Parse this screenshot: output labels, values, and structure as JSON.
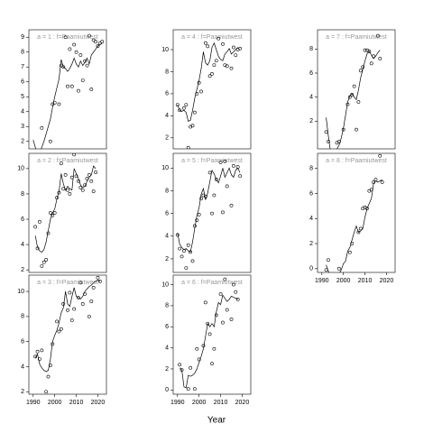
{
  "xlabel": "Year",
  "chart_data": [
    {
      "type": "scatter",
      "title": "a = 1 : f=Paamiutwest",
      "xlim": [
        1988,
        2024
      ],
      "ylim": [
        1.5,
        9.5
      ],
      "yticks": [
        2,
        3,
        4,
        5,
        6,
        7,
        8,
        9
      ],
      "x": [
        1990,
        1991,
        1992,
        1993,
        1994,
        1995,
        1996,
        1997,
        1998,
        1999,
        2000,
        2001,
        2002,
        2003,
        2004,
        2005,
        2006,
        2007,
        2008,
        2009,
        2010,
        2011,
        2012,
        2013,
        2014,
        2015,
        2016,
        2017,
        2018,
        2019,
        2020,
        2021,
        2022
      ],
      "values": [
        null,
        null,
        null,
        null,
        2.9,
        null,
        null,
        null,
        2.0,
        4.5,
        4.6,
        null,
        4.5,
        7.1,
        7.0,
        9.0,
        5.7,
        8.2,
        5.7,
        8.5,
        8.0,
        5.4,
        7.8,
        6.1,
        7.4,
        7.1,
        9.1,
        5.5,
        8.8,
        8.7,
        8.4,
        8.6,
        8.7
      ],
      "fit": [
        2.1,
        1.6,
        1.2,
        1.3,
        1.6,
        2.0,
        2.5,
        3.0,
        3.5,
        4.3,
        5.0,
        5.6,
        6.2,
        7.5,
        7.0,
        6.9,
        6.7,
        6.9,
        7.2,
        7.6,
        7.2,
        7.0,
        7.4,
        7.1,
        7.3,
        7.6,
        7.2,
        7.8,
        8.0,
        8.2,
        8.4,
        8.5,
        8.6
      ]
    },
    {
      "type": "scatter",
      "title": "a = 2 : f=Paamiutwest",
      "xlim": [
        1988,
        2024
      ],
      "ylim": [
        1.8,
        11.2
      ],
      "yticks": [
        2,
        4,
        6,
        8,
        10
      ],
      "x": [
        1990,
        1991,
        1992,
        1993,
        1994,
        1995,
        1996,
        1997,
        1998,
        1999,
        2000,
        2001,
        2002,
        2003,
        2004,
        2005,
        2006,
        2007,
        2008,
        2009,
        2010,
        2011,
        2012,
        2013,
        2014,
        2015,
        2016,
        2017,
        2018,
        2019,
        2020,
        2021,
        2022
      ],
      "values": [
        null,
        5.4,
        3.7,
        5.8,
        2.3,
        2.6,
        2.8,
        4.9,
        6.5,
        6.3,
        6.5,
        7.7,
        8.1,
        10.4,
        8.4,
        9.5,
        8.3,
        8.0,
        9.3,
        11.1,
        9.4,
        9.0,
        8.5,
        8.3,
        8.7,
        9.2,
        9.5,
        9.0,
        8.2,
        9.7,
        null,
        null,
        null
      ],
      "fit": [
        null,
        4.7,
        3.8,
        3.5,
        3.4,
        3.6,
        4.2,
        5.1,
        6.0,
        6.5,
        6.8,
        7.6,
        8.2,
        9.6,
        8.8,
        8.3,
        8.6,
        8.4,
        8.3,
        10.0,
        9.6,
        9.2,
        8.7,
        8.5,
        8.6,
        9.0,
        9.3,
        9.5,
        10.2,
        10.0,
        null,
        null,
        null
      ]
    },
    {
      "type": "scatter",
      "title": "a = 3 : f=Paamiutwest",
      "xlim": [
        1988,
        2024
      ],
      "ylim": [
        1.8,
        11.3
      ],
      "yticks": [
        2,
        4,
        6,
        8,
        10
      ],
      "xticks": [
        1990,
        2000,
        2010,
        2020
      ],
      "x": [
        1990,
        1991,
        1992,
        1993,
        1994,
        1995,
        1996,
        1997,
        1998,
        1999,
        2000,
        2001,
        2002,
        2003,
        2004,
        2005,
        2006,
        2007,
        2008,
        2009,
        2010,
        2011,
        2012,
        2013,
        2014,
        2015,
        2016,
        2017,
        2018,
        2019,
        2020,
        2021,
        2022
      ],
      "values": [
        null,
        4.8,
        5.2,
        4.6,
        5.3,
        null,
        2.0,
        3.2,
        4.1,
        5.8,
        null,
        7.6,
        6.8,
        7.0,
        9.0,
        null,
        8.5,
        9.9,
        7.7,
        8.6,
        null,
        9.5,
        10.7,
        9.0,
        9.8,
        null,
        8.0,
        9.2,
        10.3,
        null,
        11.1,
        10.8,
        null
      ],
      "fit": [
        null,
        4.7,
        5.0,
        4.2,
        3.9,
        3.7,
        3.6,
        3.7,
        4.6,
        6.0,
        6.5,
        6.9,
        7.5,
        8.3,
        8.7,
        10.0,
        9.0,
        8.8,
        9.6,
        10.3,
        9.6,
        9.5,
        9.4,
        9.6,
        10.0,
        10.2,
        10.4,
        10.5,
        10.7,
        10.8,
        10.9,
        10.8,
        null
      ]
    },
    {
      "type": "scatter",
      "title": "a = 4 : f=Paamiutwest",
      "xlim": [
        1988,
        2024
      ],
      "ylim": [
        1,
        11.8
      ],
      "yticks": [
        2,
        4,
        6,
        8,
        10
      ],
      "x": [
        1990,
        1991,
        1992,
        1993,
        1994,
        1995,
        1996,
        1997,
        1998,
        1999,
        2000,
        2001,
        2002,
        2003,
        2004,
        2005,
        2006,
        2007,
        2008,
        2009,
        2010,
        2011,
        2012,
        2013,
        2014,
        2015,
        2016,
        2017,
        2018,
        2019,
        2020,
        2021,
        2022
      ],
      "values": [
        5.0,
        4.5,
        null,
        4.7,
        5.0,
        1.1,
        3.0,
        3.1,
        4.3,
        6.0,
        7.0,
        6.2,
        null,
        10.6,
        10.3,
        7.6,
        7.8,
        8.6,
        9.0,
        11.0,
        null,
        10.5,
        8.6,
        8.5,
        null,
        8.3,
        10.2,
        9.5,
        10.0,
        10.1,
        null,
        null,
        null
      ],
      "fit": [
        5.0,
        4.5,
        4.4,
        4.5,
        4.3,
        3.5,
        3.6,
        4.5,
        5.6,
        6.4,
        7.2,
        8.3,
        9.8,
        8.8,
        8.6,
        9.0,
        10.2,
        10.6,
        10.0,
        9.4,
        9.1,
        9.0,
        9.6,
        9.8,
        10.1,
        9.6,
        9.8,
        10.0,
        10.2,
        null,
        null,
        null,
        null
      ]
    },
    {
      "type": "scatter",
      "title": "a = 5 : f=Paamiutwest",
      "xlim": [
        1988,
        2024
      ],
      "ylim": [
        0.8,
        11.3
      ],
      "yticks": [
        2,
        4,
        6,
        8,
        10
      ],
      "x": [
        1990,
        1991,
        1992,
        1993,
        1994,
        1995,
        1996,
        1997,
        1998,
        1999,
        2000,
        2001,
        2002,
        2003,
        2004,
        2005,
        2006,
        2007,
        2008,
        2009,
        2010,
        2011,
        2012,
        2013,
        2014,
        2015,
        2016,
        2017,
        2018,
        2019,
        2020,
        2021,
        2022
      ],
      "values": [
        4.1,
        2.9,
        2.2,
        2.7,
        1.2,
        3.2,
        2.6,
        1.8,
        4.9,
        5.4,
        5.9,
        7.3,
        7.6,
        7.5,
        null,
        9.6,
        6.0,
        7.6,
        9.0,
        null,
        10.5,
        6.1,
        10.6,
        8.4,
        null,
        6.7,
        10.2,
        null,
        10.1,
        9.3,
        null,
        null,
        null
      ],
      "fit": [
        4.3,
        3.3,
        3.0,
        2.8,
        2.9,
        2.7,
        2.6,
        3.5,
        4.7,
        5.8,
        6.5,
        7.7,
        8.2,
        7.2,
        7.8,
        8.8,
        9.8,
        9.5,
        9.0,
        8.7,
        9.3,
        10.0,
        9.2,
        9.6,
        10.0,
        9.4,
        9.2,
        9.8,
        10.0,
        9.6,
        null,
        null,
        null
      ]
    },
    {
      "type": "scatter",
      "title": "a = 6 : f=Paamiutwest",
      "xlim": [
        1988,
        2024
      ],
      "ylim": [
        -0.4,
        10.9
      ],
      "yticks": [
        0,
        2,
        4,
        6,
        8,
        10
      ],
      "xticks": [
        1990,
        2000,
        2010,
        2020
      ],
      "x": [
        1990,
        1991,
        1992,
        1993,
        1994,
        1995,
        1996,
        1997,
        1998,
        1999,
        2000,
        2001,
        2002,
        2003,
        2004,
        2005,
        2006,
        2007,
        2008,
        2009,
        2010,
        2011,
        2012,
        2013,
        2014,
        2015,
        2016,
        2017,
        2018,
        2019,
        2020,
        2021,
        2022
      ],
      "values": [
        null,
        2.4,
        1.9,
        null,
        null,
        0.1,
        2.1,
        null,
        0.1,
        3.9,
        2.9,
        null,
        4.2,
        8.3,
        6.3,
        5.3,
        2.5,
        3.9,
        7.1,
        null,
        9.1,
        6.4,
        10.5,
        7.6,
        null,
        6.7,
        10.0,
        9.3,
        8.6,
        null,
        null,
        null,
        null
      ],
      "fit": [
        null,
        2.1,
        1.9,
        0.3,
        0.2,
        1.4,
        1.3,
        1.4,
        1.6,
        2.0,
        2.6,
        3.2,
        3.9,
        5.1,
        6.3,
        6.0,
        6.3,
        6.0,
        7.4,
        8.3,
        8.1,
        9.0,
        8.7,
        8.4,
        8.6,
        8.9,
        8.8,
        8.7,
        8.6,
        null,
        null,
        null,
        null
      ]
    },
    {
      "type": "scatter",
      "title": "a = 7 : f=Paamiutwest",
      "xlim": [
        1988,
        2024
      ],
      "ylim": [
        -0.3,
        9.6
      ],
      "yticks": [
        2,
        4,
        6,
        8
      ],
      "x": [
        1990,
        1991,
        1992,
        1993,
        1994,
        1995,
        1996,
        1997,
        1998,
        1999,
        2000,
        2001,
        2002,
        2003,
        2004,
        2005,
        2006,
        2007,
        2008,
        2009,
        2010,
        2011,
        2012,
        2013,
        2014,
        2015,
        2016,
        2017,
        2018,
        2019,
        2020,
        2021,
        2022
      ],
      "values": [
        null,
        null,
        1.1,
        0.3,
        null,
        null,
        null,
        0.2,
        0.3,
        null,
        1.3,
        null,
        3.4,
        4.0,
        4.2,
        4.9,
        1.3,
        3.6,
        6.2,
        6.5,
        7.9,
        7.9,
        7.8,
        6.8,
        7.4,
        null,
        9.1,
        7.2,
        null,
        null,
        null,
        null,
        null
      ],
      "fit": [
        null,
        null,
        2.3,
        0.8,
        -0.5,
        -0.8,
        -0.5,
        -0.3,
        0.0,
        0.6,
        1.4,
        2.5,
        3.6,
        4.1,
        4.3,
        4.0,
        3.8,
        4.6,
        5.6,
        6.3,
        7.0,
        7.6,
        7.8,
        7.5,
        7.2,
        7.4,
        7.7,
        7.9,
        null,
        null,
        null,
        null,
        null
      ]
    },
    {
      "type": "scatter",
      "title": "a = 8 : f=Paamiutwest",
      "xlim": [
        1988,
        2024
      ],
      "ylim": [
        -0.3,
        9.2
      ],
      "yticks": [
        0,
        2,
        4,
        6,
        8
      ],
      "xticks": [
        1990,
        2000,
        2010,
        2020
      ],
      "x": [
        1990,
        1991,
        1992,
        1993,
        1994,
        1995,
        1996,
        1997,
        1998,
        1999,
        2000,
        2001,
        2002,
        2003,
        2004,
        2005,
        2006,
        2007,
        2008,
        2009,
        2010,
        2011,
        2012,
        2013,
        2014,
        2015,
        2016,
        2017,
        2018,
        2019,
        2020,
        2021,
        2022
      ],
      "values": [
        null,
        null,
        -0.1,
        0.7,
        null,
        null,
        null,
        null,
        0.0,
        null,
        null,
        null,
        null,
        1.3,
        2.0,
        null,
        null,
        2.9,
        3.2,
        4.8,
        4.9,
        4.8,
        6.2,
        6.3,
        6.9,
        7.1,
        null,
        9.0,
        6.9,
        null,
        null,
        null,
        null
      ],
      "fit": [
        null,
        null,
        0.3,
        -0.2,
        -0.5,
        -0.8,
        -0.8,
        -0.7,
        -0.4,
        -0.1,
        0.4,
        0.6,
        1.4,
        1.7,
        2.3,
        2.9,
        3.4,
        2.9,
        3.0,
        3.2,
        4.1,
        4.8,
        5.2,
        5.6,
        6.8,
        7.0,
        6.9,
        7.0,
        7.1,
        null,
        null,
        null,
        null
      ]
    }
  ]
}
